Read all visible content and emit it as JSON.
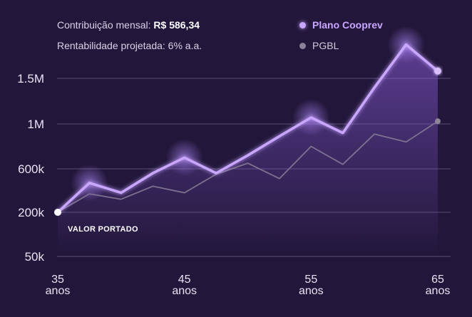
{
  "info": {
    "contribution_label": "Contribuição mensal:",
    "contribution_value": "R$ 586,34",
    "rentability": "Rentabilidade projetada: 6% a.a."
  },
  "colors": {
    "background": "#22173b",
    "coop": "#c9a6ff",
    "pgbl": "#7d7190",
    "grid": "#5a4d78"
  },
  "chart_data": {
    "type": "line",
    "x": [
      35,
      37.5,
      40,
      42.5,
      45,
      47.5,
      50,
      52.5,
      55,
      57.5,
      60,
      62.5,
      65
    ],
    "series": [
      {
        "name": "Plano Cooprev",
        "values": [
          200000,
          470000,
          380000,
          560000,
          700000,
          560000,
          720000,
          890000,
          1070000,
          920000,
          1400000,
          1870000,
          1580000
        ]
      },
      {
        "name": "PGBL",
        "values": [
          200000,
          370000,
          320000,
          440000,
          380000,
          550000,
          650000,
          510000,
          800000,
          640000,
          910000,
          840000,
          1030000
        ]
      }
    ],
    "yticks": [
      "1.5M",
      "1M",
      "600k",
      "200k",
      "50k"
    ],
    "xticks": [
      {
        "line1": "35",
        "line2": "anos"
      },
      {
        "line1": "45",
        "line2": "anos"
      },
      {
        "line1": "55",
        "line2": "anos"
      },
      {
        "line1": "65",
        "line2": "anos"
      }
    ],
    "annotation": "VALOR PORTADO",
    "grid": true,
    "legend": "top-right"
  }
}
